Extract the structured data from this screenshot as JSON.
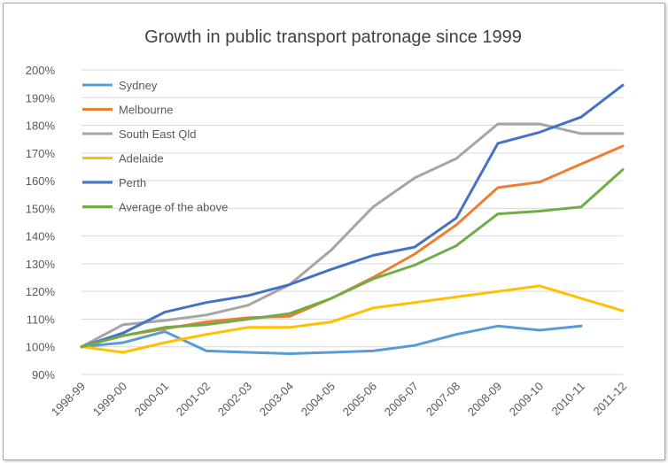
{
  "chart_data": {
    "type": "line",
    "title": "Growth in public transport patronage since 1999",
    "xlabel": "",
    "ylabel": "",
    "categories": [
      "1998-99",
      "1999-00",
      "2000-01",
      "2001-02",
      "2002-03",
      "2003-04",
      "2004-05",
      "2005-06",
      "2006-07",
      "2007-08",
      "2008-09",
      "2009-10",
      "2010-11",
      "2011-12"
    ],
    "y_ticks": [
      "90%",
      "100%",
      "110%",
      "120%",
      "130%",
      "140%",
      "150%",
      "160%",
      "170%",
      "180%",
      "190%",
      "200%"
    ],
    "ylim": [
      90,
      200
    ],
    "grid": true,
    "legend_position": "top-left",
    "series": [
      {
        "name": "Sydney",
        "color": "#5b9bd5",
        "values": [
          100,
          101.5,
          105.5,
          98.5,
          98,
          97.5,
          98,
          98.5,
          100.5,
          104.5,
          107.5,
          106,
          107.5,
          null
        ]
      },
      {
        "name": "Melbourne",
        "color": "#ed7d31",
        "values": [
          100,
          104,
          106.5,
          109,
          110.5,
          111,
          117.5,
          125,
          133.5,
          144,
          157.5,
          159.5,
          166,
          172.5
        ]
      },
      {
        "name": "South East Qld",
        "color": "#a5a5a5",
        "values": [
          100,
          108,
          109.5,
          111.5,
          115,
          122.5,
          135,
          150.5,
          161,
          168,
          180.5,
          180.5,
          177,
          177
        ]
      },
      {
        "name": "Adelaide",
        "color": "#ffc000",
        "values": [
          100,
          98,
          101.5,
          104.5,
          107,
          107,
          109,
          114,
          116,
          118,
          120,
          122,
          117.5,
          113
        ]
      },
      {
        "name": "Perth",
        "color": "#4472c4",
        "values": [
          100,
          105,
          112.5,
          116,
          118.5,
          122.5,
          128,
          133,
          136,
          146.5,
          173.5,
          177.5,
          183,
          194.5
        ]
      },
      {
        "name": "Average of the above",
        "color": "#70ad47",
        "values": [
          100,
          104,
          107,
          108,
          110,
          112,
          117.5,
          124.5,
          129.5,
          136.5,
          148,
          149,
          150.5,
          164
        ]
      }
    ]
  }
}
